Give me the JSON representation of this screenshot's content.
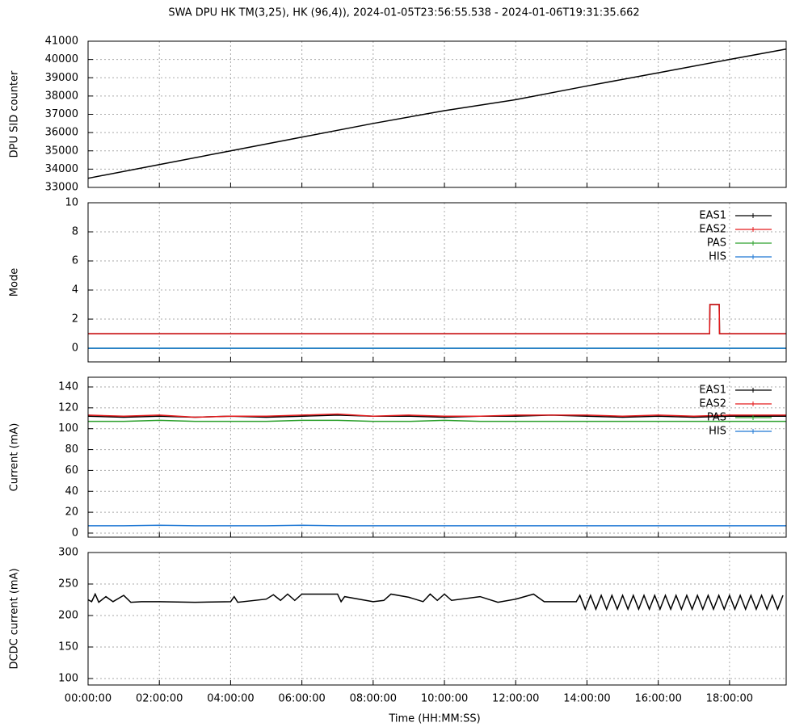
{
  "chart_data": [
    {
      "type": "line",
      "title": "SWA DPU HK TM(3,25), HK (96,4)),  2024-01-05T23:56:55.538 - 2024-01-06T19:31:35.662",
      "ylabel": "DPU SID counter",
      "color": "#000000",
      "grid": true,
      "x": [
        0,
        2,
        4,
        6,
        8,
        10,
        12,
        14,
        16,
        18,
        19.59
      ],
      "values": [
        33500,
        34250,
        35000,
        35750,
        36500,
        37200,
        37800,
        38550,
        39270,
        40000,
        40570
      ],
      "xlim": [
        0,
        19.59
      ],
      "xticks": [
        0,
        2,
        4,
        6,
        8,
        10,
        12,
        14,
        16,
        18
      ],
      "ylim": [
        33000,
        41000
      ],
      "yticks": [
        33000,
        34000,
        35000,
        36000,
        37000,
        38000,
        39000,
        40000,
        41000
      ]
    },
    {
      "type": "line",
      "ylabel": "Mode",
      "grid": true,
      "legend": "top-right",
      "x": [
        0,
        17.44,
        17.45,
        17.71,
        17.72,
        19.59
      ],
      "series": [
        {
          "name": "EAS1",
          "color": "#000000",
          "values": [
            1,
            1,
            3,
            3,
            1,
            1
          ]
        },
        {
          "name": "EAS2",
          "color": "#e41a1c",
          "values": [
            1,
            1,
            3,
            3,
            1,
            1
          ]
        },
        {
          "name": "PAS",
          "color": "#2ca02c",
          "values": [
            0,
            0,
            0,
            0,
            0,
            0
          ]
        },
        {
          "name": "HIS",
          "color": "#1f78d4",
          "values": [
            0,
            0,
            0,
            0,
            0,
            0
          ]
        }
      ],
      "xlim": [
        0,
        19.59
      ],
      "xticks": [
        0,
        2,
        4,
        6,
        8,
        10,
        12,
        14,
        16,
        18
      ],
      "ylim": [
        -0.94,
        10
      ],
      "yticks": [
        0,
        2,
        4,
        6,
        8,
        10
      ]
    },
    {
      "type": "line",
      "ylabel": "Current (mA)",
      "grid": true,
      "legend": "top-right",
      "x": [
        0,
        1,
        2,
        3,
        4,
        5,
        6,
        7,
        8,
        9,
        10,
        11,
        12,
        13,
        14,
        15,
        16,
        17,
        18,
        19.59
      ],
      "series": [
        {
          "name": "EAS1",
          "color": "#000000",
          "values": [
            112,
            111,
            112,
            111,
            112,
            111,
            112,
            113,
            112,
            112,
            111,
            112,
            112,
            113,
            112,
            111,
            112,
            111,
            112,
            112
          ]
        },
        {
          "name": "EAS2",
          "color": "#e41a1c",
          "values": [
            113,
            112,
            113,
            111,
            112,
            112,
            113,
            114,
            112,
            113,
            112,
            112,
            113,
            113,
            113,
            112,
            113,
            112,
            113,
            113
          ]
        },
        {
          "name": "PAS",
          "color": "#2ca02c",
          "values": [
            107,
            107,
            108,
            107,
            107,
            107,
            108,
            108,
            107,
            107,
            108,
            107,
            107,
            107,
            107,
            107,
            107,
            107,
            107,
            107
          ]
        },
        {
          "name": "HIS",
          "color": "#1f78d4",
          "values": [
            7,
            7,
            7.5,
            7,
            7,
            7,
            7.5,
            7,
            7,
            7,
            7,
            7,
            7,
            7,
            7,
            7,
            7,
            7,
            7,
            7
          ]
        }
      ],
      "xlim": [
        0,
        19.59
      ],
      "xticks": [
        0,
        2,
        4,
        6,
        8,
        10,
        12,
        14,
        16,
        18
      ],
      "ylim": [
        -3.9,
        149.3
      ],
      "yticks": [
        0,
        20,
        40,
        60,
        80,
        100,
        120,
        140
      ]
    },
    {
      "type": "line",
      "ylabel": "DCDC current (mA)",
      "xlabel": "Time (HH:MM:SS)",
      "color": "#000000",
      "grid": true,
      "x": [
        0,
        0.1,
        0.2,
        0.3,
        0.5,
        0.7,
        1,
        1.2,
        1.5,
        2,
        3,
        4,
        4.1,
        4.2,
        5,
        5.2,
        5.4,
        5.6,
        5.8,
        6,
        6.5,
        7,
        7.1,
        7.2,
        8,
        8.3,
        8.5,
        9,
        9.4,
        9.6,
        9.8,
        10,
        10.2,
        11,
        11.5,
        12,
        12.5,
        12.8,
        13,
        13.7,
        13.8,
        13.95,
        14.1,
        14.25,
        14.4,
        14.55,
        14.7,
        14.85,
        15,
        15.15,
        15.3,
        15.45,
        15.6,
        15.75,
        15.9,
        16.05,
        16.2,
        16.35,
        16.5,
        16.65,
        16.8,
        16.95,
        17.1,
        17.25,
        17.4,
        17.55,
        17.7,
        17.85,
        18,
        18.15,
        18.3,
        18.45,
        18.6,
        18.75,
        18.9,
        19.05,
        19.2,
        19.35,
        19.5
      ],
      "values": [
        225,
        222,
        234,
        221,
        230,
        222,
        232,
        221,
        222,
        222,
        221,
        222,
        230,
        221,
        226,
        233,
        224,
        234,
        224,
        234,
        234,
        234,
        222,
        230,
        222,
        224,
        234,
        229,
        222,
        234,
        224,
        234,
        224,
        230,
        221,
        226,
        234,
        222,
        222,
        222,
        232,
        210,
        232,
        210,
        232,
        210,
        232,
        210,
        232,
        210,
        232,
        210,
        232,
        210,
        232,
        210,
        232,
        210,
        232,
        210,
        232,
        210,
        232,
        210,
        232,
        210,
        232,
        210,
        232,
        210,
        232,
        210,
        232,
        210,
        232,
        210,
        232,
        210,
        232
      ],
      "xlim": [
        0,
        19.59
      ],
      "xticks": [
        {
          "value": 0,
          "label": "00:00:00"
        },
        {
          "value": 2,
          "label": "02:00:00"
        },
        {
          "value": 4,
          "label": "04:00:00"
        },
        {
          "value": 6,
          "label": "06:00:00"
        },
        {
          "value": 8,
          "label": "08:00:00"
        },
        {
          "value": 10,
          "label": "10:00:00"
        },
        {
          "value": 12,
          "label": "12:00:00"
        },
        {
          "value": 14,
          "label": "14:00:00"
        },
        {
          "value": 16,
          "label": "16:00:00"
        },
        {
          "value": 18,
          "label": "18:00:00"
        }
      ],
      "ylim": [
        89.7,
        300
      ],
      "yticks": [
        100,
        150,
        200,
        250,
        300
      ]
    }
  ]
}
